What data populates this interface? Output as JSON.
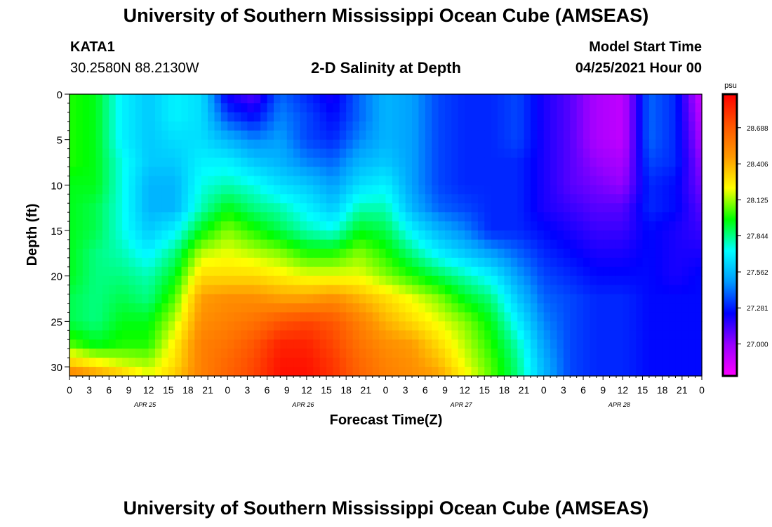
{
  "header": {
    "title": "University of Southern Mississippi Ocean Cube (AMSEAS)",
    "footer_title": "University of Southern Mississippi Ocean Cube (AMSEAS)",
    "station_id": "KATA1",
    "station_coords": "30.2580N  88.2130W",
    "plot_title": "2-D Salinity at Depth",
    "model_start_label": "Model Start Time",
    "model_start_value": "04/25/2021 Hour 00"
  },
  "chart_data": {
    "type": "heatmap",
    "title": "2-D Salinity at Depth",
    "xlabel": "Forecast Time(Z)",
    "ylabel": "Depth (ft)",
    "x_tick_labels": [
      "0",
      "3",
      "6",
      "9",
      "12",
      "15",
      "18",
      "21",
      "0",
      "3",
      "6",
      "9",
      "12",
      "15",
      "18",
      "21",
      "0",
      "3",
      "6",
      "9",
      "12",
      "15",
      "18",
      "21",
      "0",
      "3",
      "6",
      "9",
      "12",
      "15",
      "18",
      "21",
      "0"
    ],
    "x_hours": [
      0,
      3,
      6,
      9,
      12,
      15,
      18,
      21,
      24,
      27,
      30,
      33,
      36,
      39,
      42,
      45,
      48,
      51,
      54,
      57,
      60,
      63,
      66,
      69,
      72,
      75,
      78,
      81,
      84,
      87,
      90,
      93,
      96
    ],
    "day_labels": [
      {
        "label": "APR 25",
        "hour": 12
      },
      {
        "label": "APR 26",
        "hour": 36
      },
      {
        "label": "APR 27",
        "hour": 60
      },
      {
        "label": "APR 28",
        "hour": 84
      }
    ],
    "y_ticks": [
      0,
      5,
      10,
      15,
      20,
      25,
      30
    ],
    "ylim": [
      0,
      31
    ],
    "xlim": [
      0,
      96
    ],
    "colorbar": {
      "unit": "psu",
      "min": 26.75,
      "max": 28.95,
      "tick_values": [
        27.0,
        27.281,
        27.562,
        27.844,
        28.125,
        28.406,
        28.688
      ],
      "tick_labels": [
        "27.000",
        "27.281",
        "27.562",
        "27.844",
        "28.125",
        "28.406",
        "28.688"
      ],
      "colors": [
        "#ff00ff",
        "#9900ff",
        "#0000ff",
        "#0099ff",
        "#00ffff",
        "#00ff00",
        "#ffff00",
        "#ff9900",
        "#ff5500",
        "#ff0000"
      ]
    },
    "grid_depths": [
      0,
      2.5,
      5,
      7.5,
      10,
      12.5,
      15,
      17.5,
      20,
      22.5,
      25,
      27.5,
      30,
      31
    ],
    "grid_hours": [
      0,
      4,
      8,
      12,
      16,
      20,
      24,
      28,
      32,
      36,
      40,
      44,
      48,
      52,
      56,
      60,
      64,
      68,
      72,
      76,
      80,
      84,
      88,
      92,
      96
    ],
    "salinity_psu": [
      [
        28.0,
        27.95,
        27.7,
        27.6,
        27.7,
        27.65,
        27.2,
        27.1,
        27.4,
        27.3,
        27.2,
        27.4,
        27.55,
        27.5,
        27.35,
        27.3,
        27.3,
        27.35,
        27.2,
        27.1,
        26.95,
        26.9,
        27.4,
        27.3,
        26.85
      ],
      [
        28.0,
        27.95,
        27.7,
        27.6,
        27.7,
        27.65,
        27.35,
        27.25,
        27.45,
        27.35,
        27.25,
        27.4,
        27.55,
        27.5,
        27.35,
        27.3,
        27.3,
        27.35,
        27.2,
        27.1,
        26.95,
        26.9,
        27.4,
        27.3,
        26.9
      ],
      [
        28.0,
        27.95,
        27.7,
        27.6,
        27.65,
        27.65,
        27.55,
        27.45,
        27.5,
        27.35,
        27.3,
        27.45,
        27.55,
        27.5,
        27.35,
        27.3,
        27.3,
        27.35,
        27.2,
        27.1,
        26.95,
        26.9,
        27.4,
        27.3,
        26.95
      ],
      [
        28.0,
        27.95,
        27.75,
        27.6,
        27.6,
        27.7,
        27.7,
        27.6,
        27.55,
        27.45,
        27.4,
        27.55,
        27.6,
        27.5,
        27.35,
        27.3,
        27.3,
        27.3,
        27.2,
        27.1,
        27.0,
        26.95,
        27.35,
        27.3,
        27.0
      ],
      [
        27.95,
        27.95,
        27.75,
        27.55,
        27.55,
        27.75,
        27.8,
        27.75,
        27.65,
        27.6,
        27.5,
        27.65,
        27.7,
        27.5,
        27.35,
        27.3,
        27.3,
        27.3,
        27.2,
        27.1,
        27.05,
        27.0,
        27.3,
        27.25,
        27.05
      ],
      [
        27.95,
        27.9,
        27.75,
        27.55,
        27.55,
        27.8,
        27.95,
        27.85,
        27.8,
        27.7,
        27.6,
        27.8,
        27.8,
        27.55,
        27.4,
        27.35,
        27.3,
        27.3,
        27.2,
        27.15,
        27.1,
        27.1,
        27.3,
        27.25,
        27.1
      ],
      [
        27.95,
        27.9,
        27.75,
        27.6,
        27.7,
        27.95,
        28.1,
        28.0,
        27.9,
        27.8,
        27.75,
        27.95,
        27.9,
        27.7,
        27.55,
        27.45,
        27.3,
        27.3,
        27.25,
        27.2,
        27.15,
        27.15,
        27.25,
        27.2,
        27.15
      ],
      [
        27.95,
        27.85,
        27.8,
        27.7,
        27.85,
        28.15,
        28.2,
        28.15,
        28.1,
        28.0,
        28.0,
        28.1,
        28.0,
        27.85,
        27.7,
        27.6,
        27.5,
        27.4,
        27.3,
        27.25,
        27.2,
        27.2,
        27.25,
        27.2,
        27.2
      ],
      [
        27.95,
        27.85,
        27.85,
        27.8,
        27.95,
        28.3,
        28.3,
        28.3,
        28.25,
        28.2,
        28.2,
        28.2,
        28.1,
        28.0,
        27.9,
        27.8,
        27.7,
        27.5,
        27.35,
        27.3,
        27.25,
        27.25,
        27.25,
        27.2,
        27.25
      ],
      [
        27.9,
        27.85,
        27.9,
        27.85,
        28.05,
        28.45,
        28.5,
        28.5,
        28.45,
        28.45,
        28.5,
        28.4,
        28.3,
        28.2,
        28.1,
        27.95,
        27.85,
        27.6,
        27.4,
        27.35,
        27.3,
        27.3,
        27.25,
        27.25,
        27.25
      ],
      [
        27.9,
        27.85,
        27.95,
        27.95,
        28.15,
        28.5,
        28.55,
        28.6,
        28.7,
        28.75,
        28.7,
        28.55,
        28.4,
        28.3,
        28.2,
        28.1,
        27.95,
        27.7,
        27.45,
        27.35,
        27.3,
        27.3,
        27.25,
        27.25,
        27.25
      ],
      [
        28.05,
        27.95,
        28.0,
        28.0,
        28.25,
        28.55,
        28.6,
        28.7,
        28.85,
        28.85,
        28.75,
        28.6,
        28.5,
        28.45,
        28.3,
        28.15,
        28.0,
        27.8,
        27.5,
        27.35,
        27.3,
        27.3,
        27.25,
        27.25,
        27.25
      ],
      [
        28.4,
        28.3,
        28.2,
        28.15,
        28.3,
        28.55,
        28.65,
        28.75,
        28.9,
        28.9,
        28.8,
        28.65,
        28.55,
        28.5,
        28.4,
        28.2,
        28.05,
        27.85,
        27.55,
        27.35,
        27.3,
        27.3,
        27.25,
        27.25,
        27.25
      ],
      [
        28.6,
        28.5,
        28.4,
        28.2,
        28.35,
        28.55,
        28.65,
        28.75,
        28.9,
        28.9,
        28.8,
        28.65,
        28.55,
        28.5,
        28.45,
        28.25,
        28.05,
        27.85,
        27.55,
        27.35,
        27.3,
        27.3,
        27.25,
        27.25,
        27.25
      ]
    ]
  }
}
